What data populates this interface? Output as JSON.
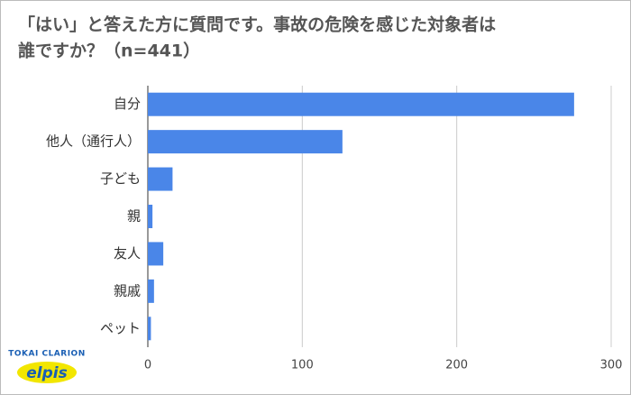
{
  "chart_data": {
    "type": "bar",
    "orientation": "horizontal",
    "title": [
      "「はい」と答えた方に質問です。事故の危険を感じた対象者は",
      "誰ですか？（n=441）"
    ],
    "categories": [
      "自分",
      "他人（通行人）",
      "子ども",
      "親",
      "友人",
      "親戚",
      "ペット"
    ],
    "values": [
      276,
      126,
      16,
      3,
      10,
      4,
      2
    ],
    "color": "#4a86e8",
    "xlim": [
      0,
      300
    ],
    "xticks": [
      0,
      100,
      200,
      300
    ],
    "grid": true
  },
  "logo": {
    "company": "TOKAI CLARION",
    "brand": "elpis"
  }
}
